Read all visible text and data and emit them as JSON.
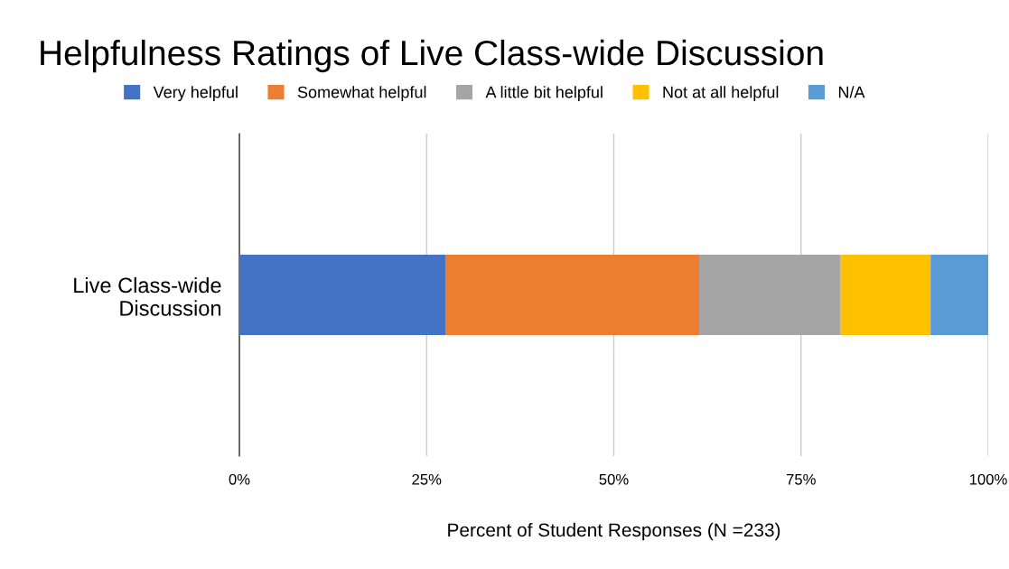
{
  "chart_data": {
    "type": "bar",
    "orientation": "horizontal",
    "stacked": true,
    "title": "Helpfulness Ratings of Live Class-wide Discussion",
    "xlabel": "Percent of Student Responses (N =233)",
    "categories": [
      "Live Class-wide\nDiscussion"
    ],
    "series": [
      {
        "name": "Very helpful",
        "color": "#4472c4",
        "values": [
          27.5
        ]
      },
      {
        "name": "Somewhat helpful",
        "color": "#ed7d31",
        "values": [
          33.9
        ]
      },
      {
        "name": "A little bit helpful",
        "color": "#a5a5a5",
        "values": [
          18.9
        ]
      },
      {
        "name": "Not at all helpful",
        "color": "#ffc000",
        "values": [
          12.0
        ]
      },
      {
        "name": "N/A",
        "color": "#5b9bd5",
        "values": [
          7.7
        ]
      }
    ],
    "xlim": [
      0,
      100
    ],
    "xticks": [
      {
        "value": 0,
        "label": "0%"
      },
      {
        "value": 25,
        "label": "25%"
      },
      {
        "value": 50,
        "label": "50%"
      },
      {
        "value": 75,
        "label": "75%"
      },
      {
        "value": 100,
        "label": "100%"
      }
    ],
    "grid": "x",
    "legend": "top"
  }
}
